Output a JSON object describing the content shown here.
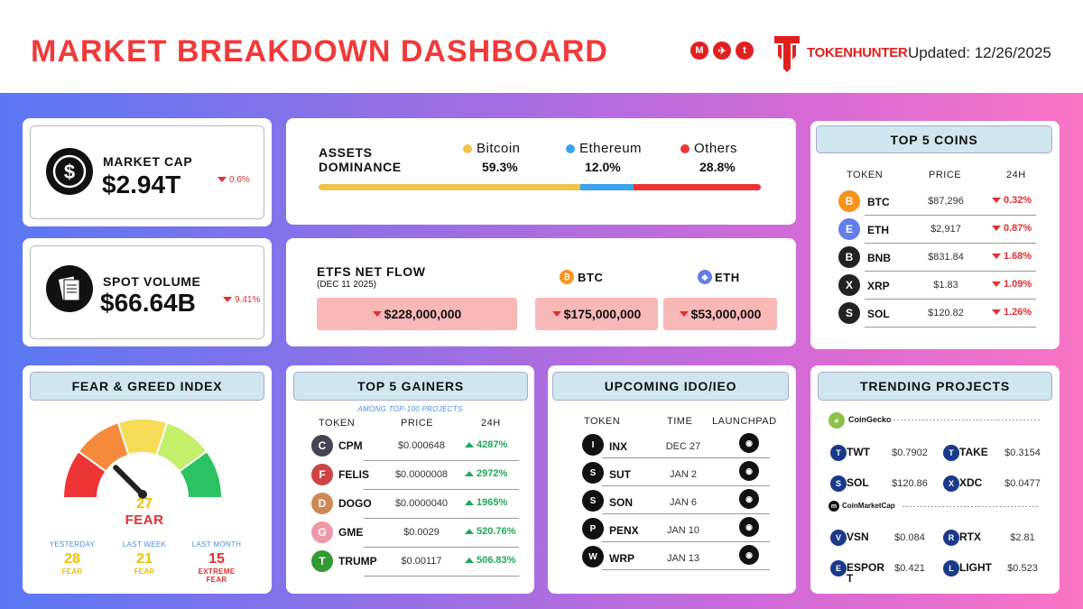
{
  "header": {
    "title": "MARKET BREAKDOWN DASHBOARD",
    "brand": "TOKENHUNTER",
    "updated": "Updated: 12/26/2025",
    "socials": [
      "M",
      "✈",
      "t"
    ]
  },
  "market_cap": {
    "label": "MARKET CAP",
    "value": "$2.94T",
    "change": "0.6%"
  },
  "spot_volume": {
    "label": "SPOT VOLUME",
    "value": "$66.64B",
    "change": "9.41%"
  },
  "dominance": {
    "label1": "ASSETS",
    "label2": "DOMINANCE",
    "items": [
      {
        "name": "Bitcoin",
        "value": "59.3%",
        "pct": 59.3,
        "color": "#f0c34a"
      },
      {
        "name": "Ethereum",
        "value": "12.0%",
        "pct": 12.0,
        "color": "#3aa4ee"
      },
      {
        "name": "Others",
        "value": "28.8%",
        "pct": 28.8,
        "color": "#ee3535"
      }
    ]
  },
  "etf": {
    "title": "ETFS NET FLOW",
    "date": "(DEC 11 2025)",
    "total": "$228,000,000",
    "btc_label": "BTC",
    "btc": "$175,000,000",
    "eth_label": "ETH",
    "eth": "$53,000,000"
  },
  "top5coins": {
    "title": "TOP 5 COINS",
    "cols": [
      "TOKEN",
      "PRICE",
      "24H"
    ],
    "rows": [
      {
        "token": "BTC",
        "price": "$87,296",
        "change": "0.32%",
        "color": "#f7931a"
      },
      {
        "token": "ETH",
        "price": "$2,917",
        "change": "0.87%",
        "color": "#627eea"
      },
      {
        "token": "BNB",
        "price": "$831.84",
        "change": "1.68%",
        "color": "#222"
      },
      {
        "token": "XRP",
        "price": "$1.83",
        "change": "1.09%",
        "color": "#222"
      },
      {
        "token": "SOL",
        "price": "$120.82",
        "change": "1.26%",
        "color": "#222"
      }
    ]
  },
  "fear": {
    "title": "FEAR & GREED INDEX",
    "value": "27",
    "label": "FEAR",
    "history": [
      {
        "period": "YESTERDAY",
        "value": "28",
        "label": "FEAR"
      },
      {
        "period": "LAST WEEK",
        "value": "21",
        "label": "FEAR"
      },
      {
        "period": "LAST MONTH",
        "value": "15",
        "label": "EXTREME FEAR"
      }
    ]
  },
  "gainers": {
    "title": "TOP 5 GAINERS",
    "subtitle": "AMONG TOP-100 PROJECTS",
    "cols": [
      "TOKEN",
      "PRICE",
      "24H"
    ],
    "rows": [
      {
        "token": "CPM",
        "price": "$0.000648",
        "change": "4287%",
        "color": "#445"
      },
      {
        "token": "FELIS",
        "price": "$0.0000008",
        "change": "2972%",
        "color": "#c44"
      },
      {
        "token": "DOGO",
        "price": "$0.0000040",
        "change": "1965%",
        "color": "#c85"
      },
      {
        "token": "GME",
        "price": "$0.0029",
        "change": "520.76%",
        "color": "#e9a"
      },
      {
        "token": "TRUMP",
        "price": "$0.00117",
        "change": "506.83%",
        "color": "#393"
      }
    ]
  },
  "ido": {
    "title": "UPCOMING IDO/IEO",
    "cols": [
      "TOKEN",
      "TIME",
      "LAUNCHPAD"
    ],
    "rows": [
      {
        "token": "INX",
        "time": "DEC 27"
      },
      {
        "token": "SUT",
        "time": "JAN 2"
      },
      {
        "token": "SON",
        "time": "JAN 6"
      },
      {
        "token": "PENX",
        "time": "JAN 10"
      },
      {
        "token": "WRP",
        "time": "JAN 13"
      }
    ]
  },
  "trending": {
    "title": "TRENDING PROJECTS",
    "sources": [
      "CoinGecko",
      "CoinMarketCap"
    ],
    "coingecko": [
      {
        "token": "TWT",
        "price": "$0.7902"
      },
      {
        "token": "TAKE",
        "price": "$0.3154"
      },
      {
        "token": "SOL",
        "price": "$120.86"
      },
      {
        "token": "XDC",
        "price": "$0.0477"
      }
    ],
    "cmc": [
      {
        "token": "VSN",
        "price": "$0.084"
      },
      {
        "token": "RTX",
        "price": "$2.81"
      },
      {
        "token": "ESPORT",
        "price": "$0.421"
      },
      {
        "token": "LIGHT",
        "price": "$0.523"
      }
    ]
  }
}
